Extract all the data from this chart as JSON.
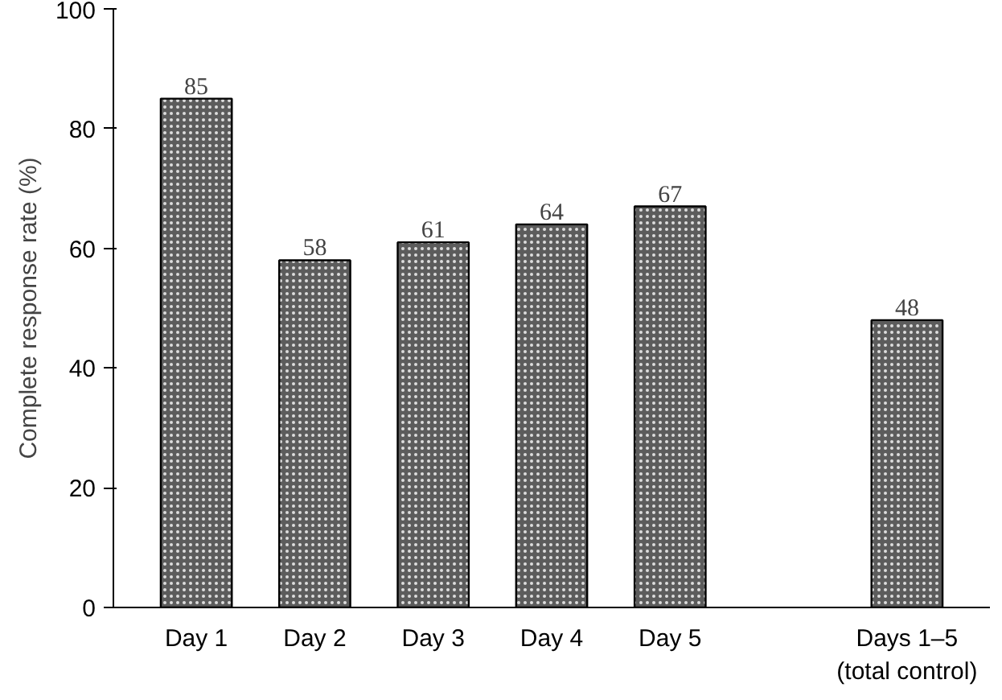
{
  "chart_data": {
    "type": "bar",
    "ylabel": "Complete response rate (%)",
    "categories": [
      "Day 1",
      "Day 2",
      "Day 3",
      "Day 4",
      "Day 5",
      null,
      "Days 1–5\n(total control)"
    ],
    "values": [
      85,
      58,
      61,
      64,
      67,
      null,
      48
    ],
    "color": "#5c5c5c",
    "ylim": [
      0,
      100
    ],
    "yticks": [
      0,
      20,
      40,
      60,
      80,
      100
    ],
    "grid": false,
    "data_labels": true
  }
}
